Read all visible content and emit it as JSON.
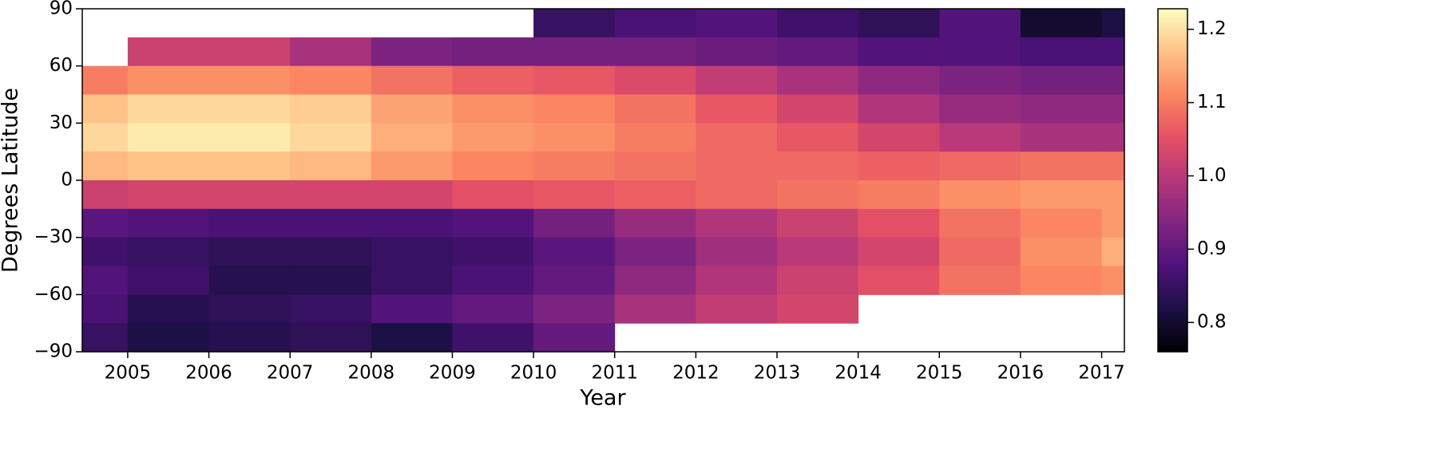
{
  "chart_data": {
    "type": "heatmap",
    "xlabel": "Year",
    "ylabel": "Degrees Latitude",
    "colormap": "magma",
    "x_edges": [
      2004.44,
      2005,
      2006,
      2007,
      2008,
      2009,
      2010,
      2011,
      2012,
      2013,
      2014,
      2015,
      2016,
      2017,
      2017.28
    ],
    "y_edges": [
      90,
      75,
      60,
      45,
      30,
      15,
      0,
      -15,
      -30,
      -45,
      -60,
      -75,
      -90
    ],
    "values": [
      [
        null,
        null,
        null,
        null,
        null,
        null,
        0.85,
        0.87,
        0.88,
        0.86,
        0.84,
        0.88,
        0.8,
        0.82
      ],
      [
        null,
        1.02,
        1.02,
        0.98,
        0.93,
        0.92,
        0.92,
        0.92,
        0.91,
        0.9,
        0.88,
        0.88,
        0.87,
        0.87
      ],
      [
        1.1,
        1.12,
        1.12,
        1.11,
        1.09,
        1.07,
        1.06,
        1.04,
        1.01,
        0.98,
        0.95,
        0.93,
        0.92,
        0.92
      ],
      [
        1.17,
        1.19,
        1.19,
        1.18,
        1.14,
        1.12,
        1.11,
        1.09,
        1.06,
        1.03,
        0.99,
        0.96,
        0.95,
        0.95
      ],
      [
        1.19,
        1.21,
        1.21,
        1.19,
        1.15,
        1.13,
        1.12,
        1.1,
        1.08,
        1.06,
        1.03,
        1.0,
        0.98,
        0.98
      ],
      [
        1.16,
        1.17,
        1.17,
        1.16,
        1.13,
        1.11,
        1.1,
        1.09,
        1.08,
        1.08,
        1.07,
        1.08,
        1.09,
        1.09
      ],
      [
        1.02,
        1.03,
        1.03,
        1.03,
        1.03,
        1.05,
        1.06,
        1.07,
        1.08,
        1.09,
        1.1,
        1.12,
        1.13,
        1.13
      ],
      [
        0.89,
        0.88,
        0.87,
        0.87,
        0.87,
        0.88,
        0.92,
        0.96,
        0.99,
        1.02,
        1.05,
        1.09,
        1.11,
        1.13
      ],
      [
        0.86,
        0.85,
        0.84,
        0.84,
        0.85,
        0.86,
        0.89,
        0.93,
        0.97,
        1.0,
        1.03,
        1.08,
        1.12,
        1.15
      ],
      [
        0.88,
        0.86,
        0.83,
        0.83,
        0.85,
        0.87,
        0.9,
        0.95,
        0.99,
        1.02,
        1.05,
        1.09,
        1.11,
        1.12
      ],
      [
        0.87,
        0.83,
        0.84,
        0.85,
        0.88,
        0.9,
        0.93,
        0.98,
        1.01,
        1.03,
        null,
        null,
        null,
        null
      ],
      [
        0.85,
        0.82,
        0.83,
        0.84,
        0.82,
        0.86,
        0.9,
        null,
        null,
        null,
        null,
        null,
        null,
        null
      ]
    ],
    "xlim": [
      2004.44,
      2017.28
    ],
    "ylim": [
      -90,
      90
    ],
    "xticks": [
      2005,
      2006,
      2007,
      2008,
      2009,
      2010,
      2011,
      2012,
      2013,
      2014,
      2015,
      2016,
      2017
    ],
    "yticks": [
      {
        "value": -90,
        "label": "−90"
      },
      {
        "value": -60,
        "label": "−60"
      },
      {
        "value": -30,
        "label": "−30"
      },
      0,
      30,
      60,
      90
    ],
    "colorbar": {
      "lim": [
        0.76,
        1.228
      ],
      "ticks": [
        0.8,
        0.9,
        {
          "value": 1,
          "label": "1.0"
        },
        1.1,
        1.2
      ]
    }
  }
}
